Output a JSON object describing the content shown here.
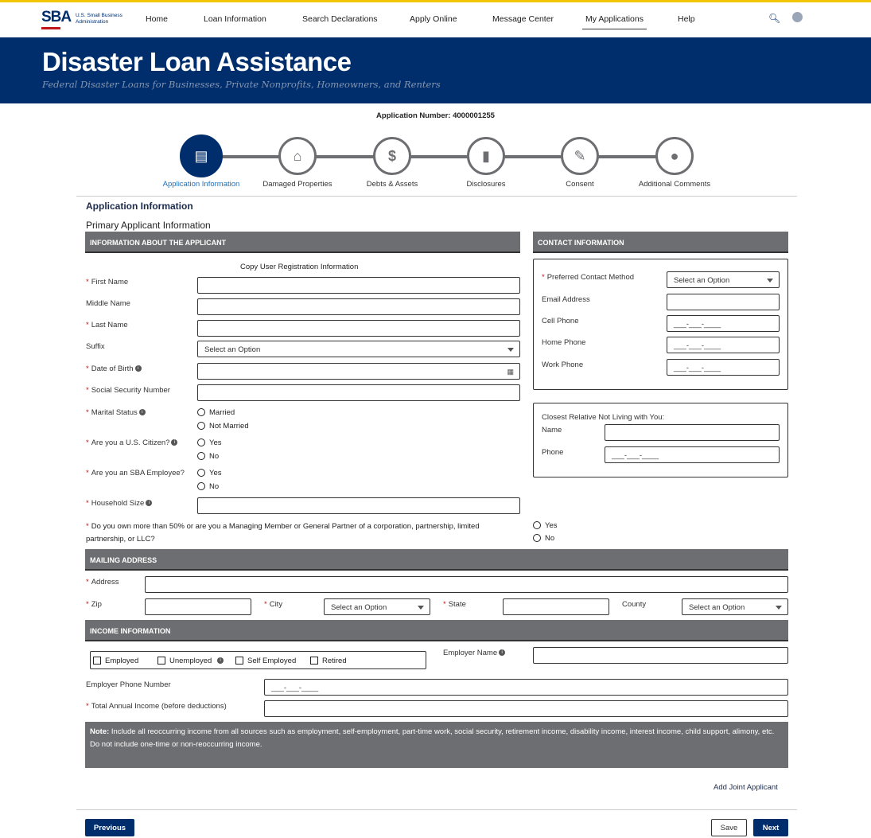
{
  "header": {
    "logo_text": "SBA",
    "logo_subtitle": "U.S. Small Business Administration",
    "nav": [
      "Home",
      "Loan Information",
      "Search Declarations",
      "Apply Online",
      "Message Center",
      "My Applications",
      "Help"
    ],
    "active_nav": "My Applications",
    "search_icon": "search-icon",
    "user_icon": "user-icon"
  },
  "banner": {
    "title": "Disaster Loan Assistance",
    "subtitle": "Federal Disaster Loans for Businesses, Private Nonprofits, Homeowners, and Renters"
  },
  "application_number": "Application Number: 4000001255",
  "steps": [
    {
      "label": "Application Information",
      "icon": "id-card-icon",
      "active": true
    },
    {
      "label": "Damaged Properties",
      "icon": "store-icon"
    },
    {
      "label": "Debts & Assets",
      "icon": "money-bag-icon"
    },
    {
      "label": "Disclosures",
      "icon": "document-icon"
    },
    {
      "label": "Consent",
      "icon": "signature-icon"
    },
    {
      "label": "Additional Comments",
      "icon": "chat-icon"
    }
  ],
  "section_title": "Application Information",
  "subsection_title": "Primary Applicant Information",
  "applicant": {
    "header": "INFORMATION ABOUT THE APPLICANT",
    "copy_link": "Copy User Registration Information",
    "first_name": "First Name",
    "middle_name": "Middle Name",
    "last_name": "Last Name",
    "suffix": "Suffix",
    "suffix_value": "Select an Option",
    "dob": "Date of Birth",
    "ssn": "Social Security Number",
    "marital": "Marital Status",
    "married": "Married",
    "not_married": "Not Married",
    "citizen": "Are you a U.S. Citizen?",
    "sba_employee": "Are you an SBA Employee?",
    "yes": "Yes",
    "no": "No",
    "household": "Household Size",
    "ownership": "Do you own more than 50% or are you a Managing Member or General Partner of a corporation, partnership, limited partnership, or LLC?"
  },
  "contact": {
    "header": "CONTACT INFORMATION",
    "preferred": "Preferred Contact Method",
    "preferred_value": "Select an Option",
    "email": "Email Address",
    "cell": "Cell Phone",
    "home": "Home Phone",
    "work": "Work Phone",
    "phone_mask": "___-___-____",
    "relative_title": "Closest Relative Not Living with You:",
    "relative_name": "Name",
    "relative_phone": "Phone"
  },
  "mailing": {
    "header": "MAILING ADDRESS",
    "address": "Address",
    "zip": "Zip",
    "city": "City",
    "city_value": "Select an Option",
    "state": "State",
    "county": "County",
    "county_value": "Select an Option"
  },
  "income": {
    "header": "INCOME INFORMATION",
    "employed": "Employed",
    "unemployed": "Unemployed",
    "self_employed": "Self Employed",
    "retired": "Retired",
    "employer_name": "Employer Name",
    "employer_phone": "Employer Phone Number",
    "employer_phone_mask": "___-___-____",
    "total_income": "Total Annual Income (before deductions)",
    "note_label": "Note:",
    "note_text": "Include all reoccurring income from all sources such as employment, self-employment, part-time work, social security, retirement income, disability income, interest income, child support, alimony, etc.",
    "note_text2": "Do not include one-time or non-reoccurring income."
  },
  "add_joint": "Add Joint Applicant",
  "buttons": {
    "previous": "Previous",
    "save": "Save",
    "next": "Next"
  },
  "colors": {
    "navy": "#002e6d",
    "accent_yellow": "#f2c500",
    "section_gray": "#6d6e71",
    "required": "#c0161b"
  }
}
